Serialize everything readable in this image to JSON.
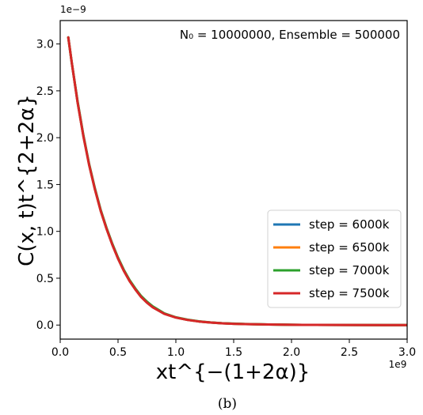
{
  "chart_data": {
    "type": "line",
    "x_tick_labels": [
      "0.0",
      "0.5",
      "1.0",
      "1.5",
      "2.0",
      "2.5",
      "3.0"
    ],
    "x_ticks": [
      0.0,
      0.5,
      1.0,
      1.5,
      2.0,
      2.5,
      3.0
    ],
    "x_offset_label": "1e9",
    "xlim": [
      0.0,
      3.0
    ],
    "y_tick_labels": [
      "0.0",
      "0.5",
      "1.0",
      "1.5",
      "2.0",
      "2.5",
      "3.0"
    ],
    "y_ticks": [
      0.0,
      0.5,
      1.0,
      1.5,
      2.0,
      2.5,
      3.0
    ],
    "y_offset_label": "1e−9",
    "ylim": [
      -0.15,
      3.25
    ],
    "xlabel": "xt^{−(1+2α)}",
    "ylabel": "C(x, t)t^{2+2α}",
    "annotation": "N₀ = 10000000, Ensemble = 500000",
    "caption": "(b)",
    "legend_position": "lower-right",
    "grid": false,
    "series": [
      {
        "name": "step = 6000k",
        "color": "#1f77b4",
        "x": [
          0.07,
          0.1,
          0.15,
          0.2,
          0.25,
          0.3,
          0.35,
          0.4,
          0.45,
          0.5,
          0.55,
          0.6,
          0.65,
          0.7,
          0.75,
          0.8,
          0.9,
          1.0,
          1.1,
          1.2,
          1.3,
          1.4,
          1.5,
          1.6,
          1.8,
          2.0,
          2.2,
          2.5,
          2.8,
          3.0
        ],
        "y": [
          3.07,
          2.8,
          2.38,
          2.02,
          1.71,
          1.45,
          1.22,
          1.03,
          0.86,
          0.71,
          0.58,
          0.47,
          0.38,
          0.3,
          0.24,
          0.19,
          0.12,
          0.08,
          0.055,
          0.038,
          0.027,
          0.019,
          0.014,
          0.01,
          0.006,
          0.003,
          0.002,
          0.001,
          0.0005,
          0.0003
        ]
      },
      {
        "name": "step = 6500k",
        "color": "#ff7f0e",
        "x": [
          0.07,
          0.1,
          0.15,
          0.2,
          0.25,
          0.3,
          0.35,
          0.4,
          0.45,
          0.5,
          0.55,
          0.6,
          0.65,
          0.7,
          0.75,
          0.8,
          0.9,
          1.0,
          1.1,
          1.2,
          1.3,
          1.4,
          1.5,
          1.6,
          1.8,
          2.0,
          2.2,
          2.5,
          2.8,
          3.0
        ],
        "y": [
          3.07,
          2.8,
          2.38,
          2.02,
          1.71,
          1.45,
          1.22,
          1.03,
          0.86,
          0.71,
          0.58,
          0.47,
          0.38,
          0.3,
          0.24,
          0.19,
          0.12,
          0.08,
          0.055,
          0.038,
          0.027,
          0.019,
          0.014,
          0.01,
          0.006,
          0.003,
          0.002,
          0.001,
          0.0005,
          0.0003
        ]
      },
      {
        "name": "step = 7000k",
        "color": "#2ca02c",
        "x": [
          0.07,
          0.1,
          0.15,
          0.2,
          0.25,
          0.3,
          0.35,
          0.4,
          0.45,
          0.5,
          0.55,
          0.6,
          0.65,
          0.7,
          0.75,
          0.8,
          0.9,
          1.0,
          1.1,
          1.2,
          1.3,
          1.4,
          1.5,
          1.6,
          1.8,
          2.0,
          2.2,
          2.5,
          2.8,
          3.0
        ],
        "y": [
          3.07,
          2.8,
          2.39,
          2.03,
          1.72,
          1.46,
          1.23,
          1.04,
          0.87,
          0.72,
          0.59,
          0.48,
          0.39,
          0.31,
          0.25,
          0.2,
          0.125,
          0.083,
          0.058,
          0.04,
          0.028,
          0.02,
          0.015,
          0.011,
          0.006,
          0.003,
          0.002,
          0.001,
          0.0005,
          0.0003
        ]
      },
      {
        "name": "step = 7500k",
        "color": "#d62728",
        "x": [
          0.07,
          0.1,
          0.15,
          0.2,
          0.25,
          0.3,
          0.35,
          0.4,
          0.45,
          0.5,
          0.55,
          0.6,
          0.65,
          0.7,
          0.75,
          0.8,
          0.9,
          1.0,
          1.1,
          1.2,
          1.3,
          1.4,
          1.5,
          1.6,
          1.8,
          2.0,
          2.2,
          2.5,
          2.8,
          3.0
        ],
        "y": [
          3.07,
          2.8,
          2.38,
          2.02,
          1.71,
          1.45,
          1.22,
          1.03,
          0.86,
          0.71,
          0.58,
          0.47,
          0.38,
          0.3,
          0.24,
          0.19,
          0.12,
          0.08,
          0.055,
          0.038,
          0.027,
          0.019,
          0.014,
          0.01,
          0.006,
          0.003,
          0.002,
          0.001,
          0.0005,
          0.0003
        ]
      }
    ]
  }
}
